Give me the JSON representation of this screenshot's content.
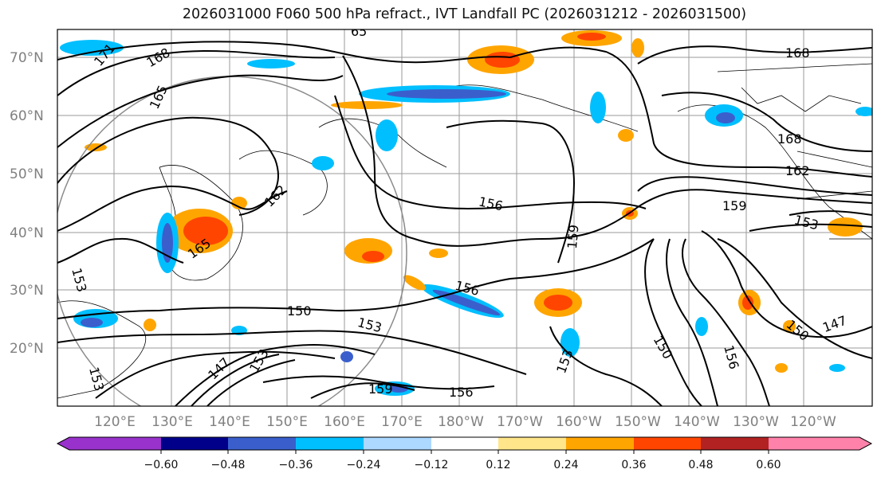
{
  "title": "2026031000 F060 500 hPa refract., IVT Landfall PC (2026031212 - 2026031500)",
  "lat_labels": [
    "70°N",
    "60°N",
    "50°N",
    "40°N",
    "30°N",
    "20°N"
  ],
  "lon_labels": [
    "120°E",
    "130°E",
    "140°E",
    "150°E",
    "160°E",
    "170°E",
    "180°W",
    "170°W",
    "160°W",
    "150°W",
    "140°W",
    "130°W",
    "120°W"
  ],
  "contour_labels": [
    "171",
    "168",
    "165",
    "165",
    "162",
    "165",
    "153",
    "150",
    "153",
    "147",
    "153",
    "156",
    "159",
    "159",
    "156",
    "156",
    "153",
    "150",
    "159",
    "156",
    "147",
    "153",
    "150",
    "168",
    "162",
    "168",
    "153",
    "156",
    "159",
    "153",
    "65"
  ],
  "colorbar": {
    "colors": [
      "#9932cc",
      "#00008b",
      "#3a5fcd",
      "#00bfff",
      "#add8ff",
      "#ffffff",
      "#ffe68a",
      "#ffa500",
      "#ff4500",
      "#b22222",
      "#ff82ab"
    ],
    "tick_labels": [
      "-0.60",
      "-0.48",
      "-0.36",
      "-0.24",
      "-0.12",
      "0.12",
      "0.24",
      "0.36",
      "0.48",
      "0.60"
    ],
    "labels_text": [
      "−0.60",
      "−0.48",
      "−0.36",
      "−0.24",
      "−0.12",
      "0.12",
      "0.24",
      "0.36",
      "0.48",
      "0.60"
    ]
  }
}
